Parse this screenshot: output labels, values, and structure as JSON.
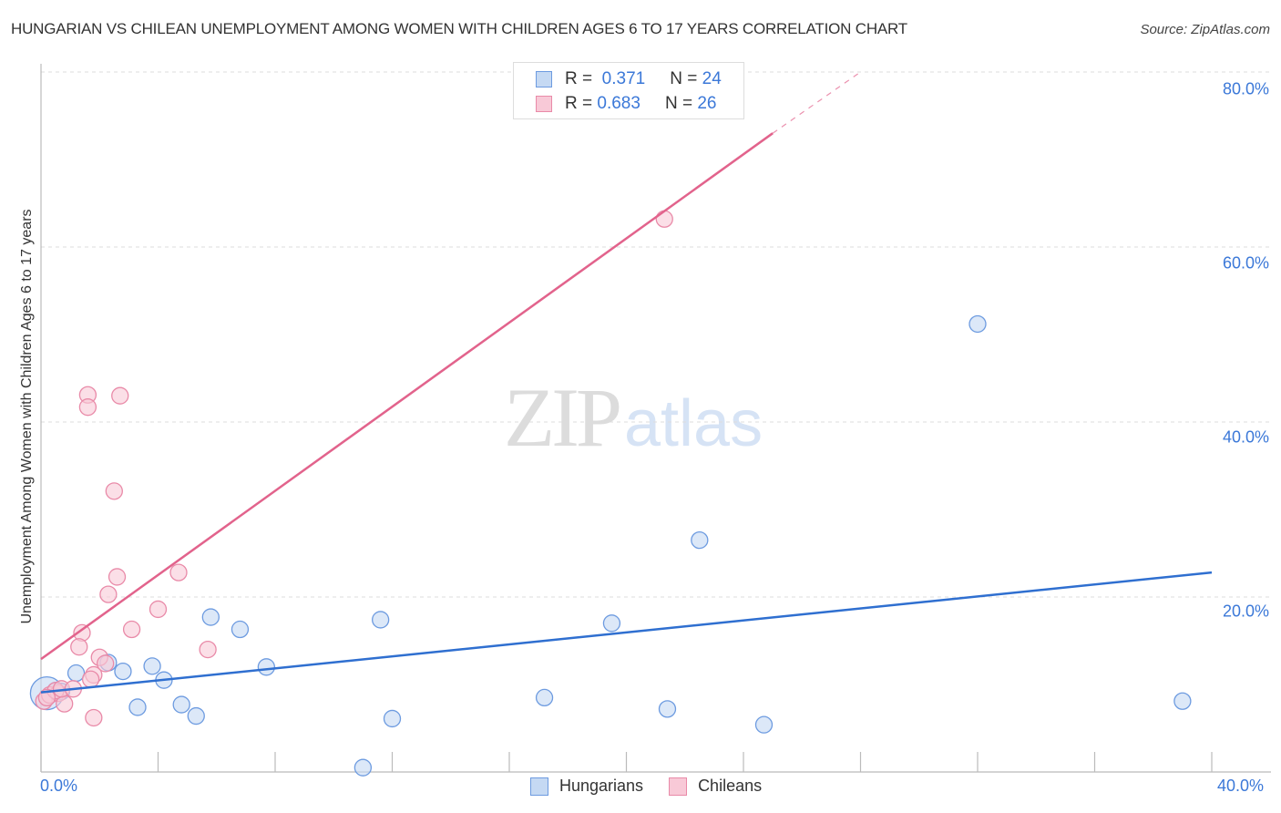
{
  "header": {
    "title": "HUNGARIAN VS CHILEAN UNEMPLOYMENT AMONG WOMEN WITH CHILDREN AGES 6 TO 17 YEARS CORRELATION CHART",
    "source": "Source: ZipAtlas.com"
  },
  "watermark": {
    "zip": "ZIP",
    "atlas": "atlas"
  },
  "axes": {
    "ylabel": "Unemployment Among Women with Children Ages 6 to 17 years",
    "yticks": [
      "80.0%",
      "60.0%",
      "40.0%",
      "20.0%"
    ],
    "xticks": [
      "0.0%",
      "40.0%"
    ]
  },
  "legend": {
    "rows": [
      {
        "r_label": "R =",
        "r_value": "0.371",
        "n_label": "N =",
        "n_value": "24"
      },
      {
        "r_label": "R =",
        "r_value": "0.683",
        "n_label": "N =",
        "n_value": "26"
      }
    ],
    "bottom": [
      {
        "label": "Hungarians"
      },
      {
        "label": "Chileans"
      }
    ]
  },
  "colors": {
    "hungarians_fill": "#c5d9f3",
    "hungarians_stroke": "#6d9be0",
    "hungarians_line": "#2f6fd0",
    "chileans_fill": "#f8c9d7",
    "chileans_stroke": "#e98aa8",
    "chileans_line": "#e2638c",
    "tick_text": "#3b78d8",
    "grid": "#dddddd"
  },
  "chart_data": {
    "type": "scatter",
    "title": "HUNGARIAN VS CHILEAN UNEMPLOYMENT AMONG WOMEN WITH CHILDREN AGES 6 TO 17 YEARS CORRELATION CHART",
    "xlabel": "",
    "ylabel": "Unemployment Among Women with Children Ages 6 to 17 years",
    "xlim": [
      0,
      40
    ],
    "ylim": [
      0,
      80
    ],
    "x_unit": "%",
    "y_unit": "%",
    "grid": {
      "y": true,
      "x": false,
      "style": "dashed"
    },
    "legend_position": "top-center and bottom",
    "series": [
      {
        "name": "Hungarians",
        "R": 0.371,
        "N": 24,
        "trendline": {
          "x": [
            0,
            40
          ],
          "y": [
            9.1,
            22.8
          ]
        },
        "points": [
          [
            0.2,
            9.0
          ],
          [
            0.5,
            9.3
          ],
          [
            0.7,
            9.2
          ],
          [
            1.2,
            11.3
          ],
          [
            2.3,
            12.5
          ],
          [
            2.8,
            11.5
          ],
          [
            3.3,
            7.4
          ],
          [
            3.8,
            12.1
          ],
          [
            4.2,
            10.5
          ],
          [
            4.8,
            7.7
          ],
          [
            5.3,
            6.4
          ],
          [
            5.8,
            17.7
          ],
          [
            6.8,
            16.3
          ],
          [
            7.7,
            12.0
          ],
          [
            11.0,
            0.5
          ],
          [
            11.6,
            17.4
          ],
          [
            12.0,
            6.1
          ],
          [
            17.2,
            8.5
          ],
          [
            19.5,
            17.0
          ],
          [
            21.4,
            7.2
          ],
          [
            22.5,
            26.5
          ],
          [
            24.7,
            5.4
          ],
          [
            32.0,
            51.2
          ],
          [
            39.0,
            8.1
          ]
        ]
      },
      {
        "name": "Chileans",
        "R": 0.683,
        "N": 26,
        "trendline": {
          "x": [
            0,
            25.0
          ],
          "y": [
            12.9,
            73.0
          ],
          "dashed_extension": {
            "x": [
              25.0,
              28.0
            ],
            "y": [
              73.0,
              80.0
            ]
          }
        },
        "points": [
          [
            0.1,
            8.1
          ],
          [
            0.3,
            8.8
          ],
          [
            0.6,
            9.0
          ],
          [
            0.8,
            7.8
          ],
          [
            1.4,
            15.9
          ],
          [
            1.6,
            43.1
          ],
          [
            1.6,
            41.7
          ],
          [
            1.3,
            14.3
          ],
          [
            1.8,
            11.1
          ],
          [
            1.8,
            6.2
          ],
          [
            2.0,
            13.1
          ],
          [
            2.2,
            12.4
          ],
          [
            2.5,
            32.1
          ],
          [
            2.6,
            22.3
          ],
          [
            2.7,
            43.0
          ],
          [
            2.3,
            20.3
          ],
          [
            3.1,
            16.3
          ],
          [
            4.0,
            18.6
          ],
          [
            4.7,
            22.8
          ],
          [
            5.7,
            14.0
          ],
          [
            21.3,
            63.2
          ],
          [
            0.5,
            9.3
          ],
          [
            0.7,
            9.5
          ],
          [
            0.2,
            8.5
          ],
          [
            1.1,
            9.5
          ],
          [
            1.7,
            10.6
          ]
        ]
      }
    ]
  }
}
